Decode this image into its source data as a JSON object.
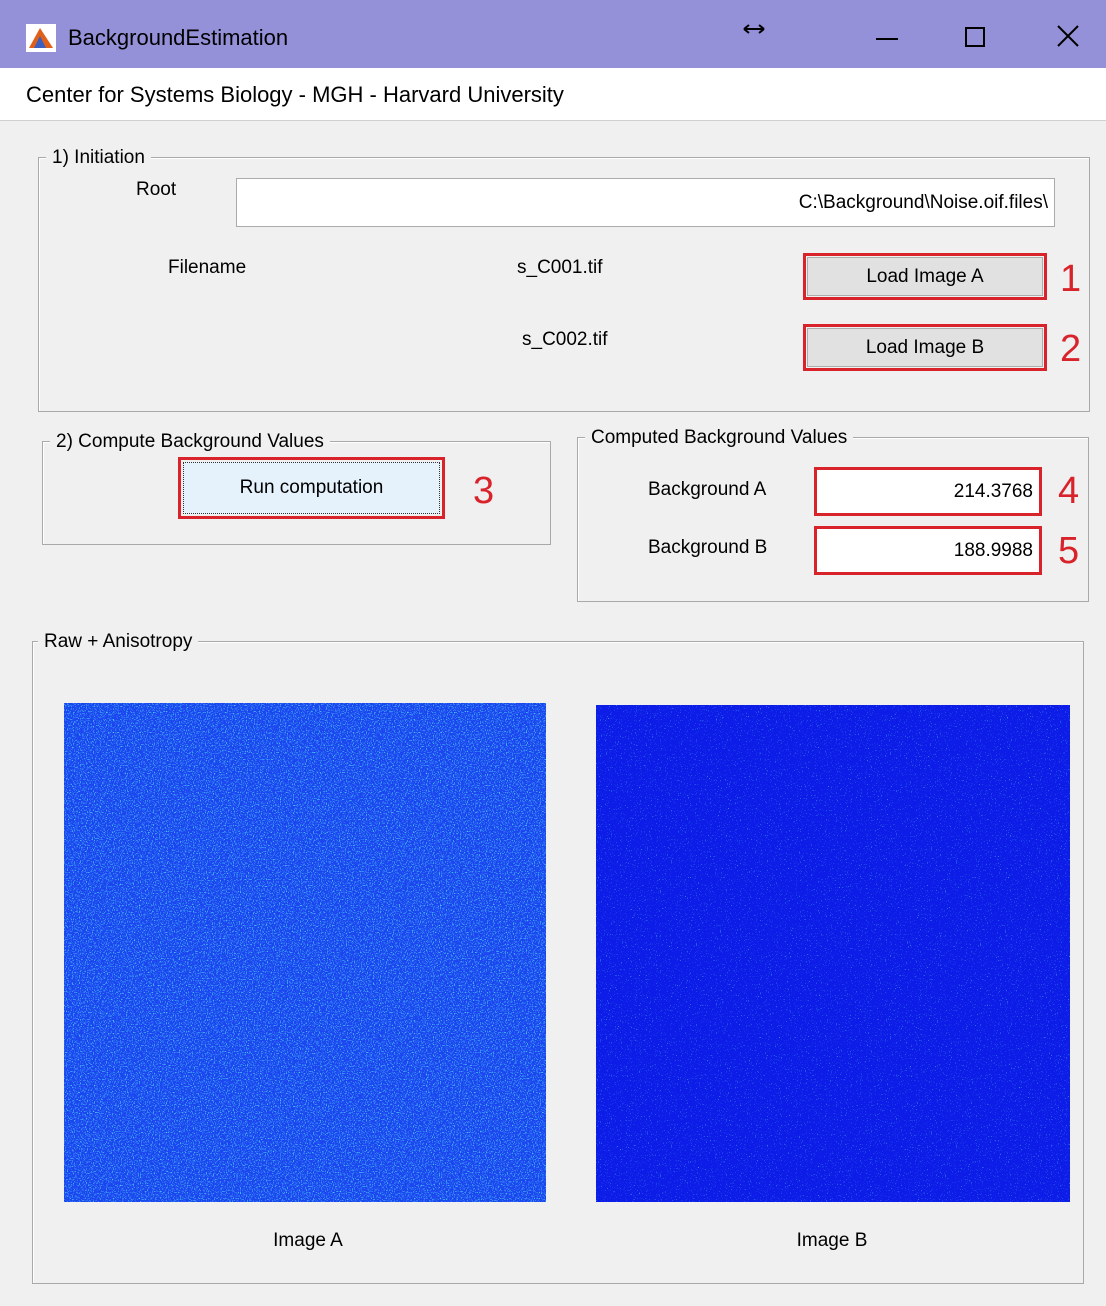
{
  "window": {
    "title": "BackgroundEstimation",
    "subtitle": "Center for Systems Biology - MGH - Harvard University"
  },
  "initiation": {
    "legend": "1) Initiation",
    "root_label": "Root",
    "root_value": "C:\\Background\\Noise.oif.files\\",
    "filename_label": "Filename",
    "file_a": "s_C001.tif",
    "file_b": "s_C002.tif",
    "button_a": "Load Image A",
    "marker_a": "1",
    "button_b": "Load Image B",
    "marker_b": "2"
  },
  "compute": {
    "legend": "2) Compute Background Values",
    "button": "Run computation",
    "marker": "3"
  },
  "results": {
    "legend": "Computed Background Values",
    "label_a": "Background A",
    "value_a": "214.3768",
    "marker_a": "4",
    "label_b": "Background B",
    "value_b": "188.9988",
    "marker_b": "5"
  },
  "images": {
    "legend": "Raw + Anisotropy",
    "caption_a": "Image A",
    "caption_b": "Image B"
  }
}
